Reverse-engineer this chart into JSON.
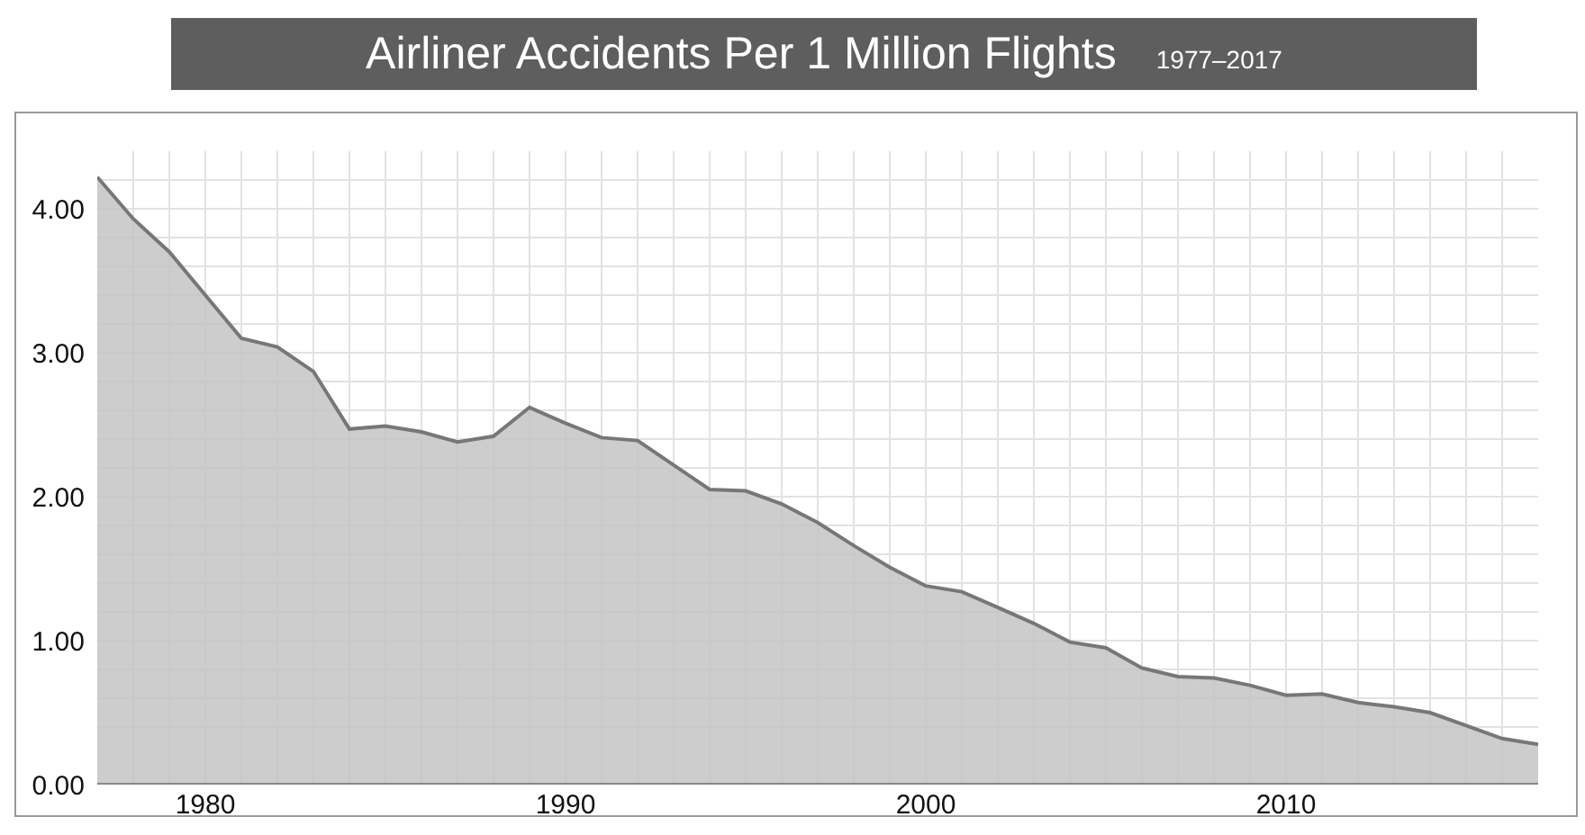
{
  "chart_data": {
    "type": "area",
    "title": "Airliner Accidents Per 1 Million Flights",
    "subtitle": "1977–2017",
    "x": [
      1977,
      1978,
      1979,
      1980,
      1981,
      1982,
      1983,
      1984,
      1985,
      1986,
      1987,
      1988,
      1989,
      1990,
      1991,
      1992,
      1993,
      1994,
      1995,
      1996,
      1997,
      1998,
      1999,
      2000,
      2001,
      2002,
      2003,
      2004,
      2005,
      2006,
      2007,
      2008,
      2009,
      2010,
      2011,
      2012,
      2013,
      2014,
      2015,
      2016,
      2017
    ],
    "series": [
      {
        "color": "#c4c4c4",
        "values": [
          4.22,
          3.93,
          3.7,
          3.4,
          3.1,
          3.04,
          2.87,
          2.47,
          2.49,
          2.45,
          2.38,
          2.42,
          2.62,
          2.51,
          2.41,
          2.39,
          2.22,
          2.05,
          2.04,
          1.95,
          1.82,
          1.66,
          1.51,
          1.38,
          1.34,
          1.23,
          1.12,
          0.99,
          0.95,
          0.81,
          0.75,
          0.74,
          0.69,
          0.62,
          0.63,
          0.57,
          0.54,
          0.5,
          0.41,
          0.32,
          0.28
        ]
      }
    ],
    "xlim": [
      1977,
      2017
    ],
    "xticks": [
      {
        "value": 1978,
        "label": null
      },
      {
        "value": 1979,
        "label": null
      },
      1980,
      {
        "value": 1981,
        "label": null
      },
      {
        "value": 1982,
        "label": null
      },
      {
        "value": 1983,
        "label": null
      },
      {
        "value": 1984,
        "label": null
      },
      {
        "value": 1985,
        "label": null
      },
      {
        "value": 1986,
        "label": null
      },
      {
        "value": 1987,
        "label": null
      },
      {
        "value": 1988,
        "label": null
      },
      {
        "value": 1989,
        "label": null
      },
      1990,
      {
        "value": 1991,
        "label": null
      },
      {
        "value": 1992,
        "label": null
      },
      {
        "value": 1993,
        "label": null
      },
      {
        "value": 1994,
        "label": null
      },
      {
        "value": 1995,
        "label": null
      },
      {
        "value": 1996,
        "label": null
      },
      {
        "value": 1997,
        "label": null
      },
      {
        "value": 1998,
        "label": null
      },
      {
        "value": 1999,
        "label": null
      },
      2000,
      {
        "value": 2001,
        "label": null
      },
      {
        "value": 2002,
        "label": null
      },
      {
        "value": 2003,
        "label": null
      },
      {
        "value": 2004,
        "label": null
      },
      {
        "value": 2005,
        "label": null
      },
      {
        "value": 2006,
        "label": null
      },
      {
        "value": 2007,
        "label": null
      },
      {
        "value": 2008,
        "label": null
      },
      {
        "value": 2009,
        "label": null
      },
      2010,
      {
        "value": 2011,
        "label": null
      },
      {
        "value": 2012,
        "label": null
      },
      {
        "value": 2013,
        "label": null
      },
      {
        "value": 2014,
        "label": null
      },
      {
        "value": 2015,
        "label": null
      },
      {
        "value": 2016,
        "label": null
      }
    ],
    "ylim": [
      0,
      4.4
    ],
    "yticks": [
      {
        "value": 0,
        "label": "0.00"
      },
      {
        "value": 0.4,
        "label": null
      },
      {
        "value": 0.6,
        "label": null
      },
      {
        "value": 0.8,
        "label": null
      },
      {
        "value": 1,
        "label": "1.00"
      },
      {
        "value": 1.2,
        "label": null
      },
      {
        "value": 1.4,
        "label": null
      },
      {
        "value": 1.6,
        "label": null
      },
      {
        "value": 1.8,
        "label": null
      },
      {
        "value": 2,
        "label": "2.00"
      },
      {
        "value": 2.2,
        "label": null
      },
      {
        "value": 2.4,
        "label": null
      },
      {
        "value": 2.6,
        "label": null
      },
      {
        "value": 2.8,
        "label": null
      },
      {
        "value": 3,
        "label": "3.00"
      },
      {
        "value": 3.2,
        "label": null
      },
      {
        "value": 3.4,
        "label": null
      },
      {
        "value": 3.6,
        "label": null
      },
      {
        "value": 3.8,
        "label": null
      },
      {
        "value": 4,
        "label": "4.00"
      },
      {
        "value": 4.2,
        "label": null
      }
    ],
    "grid": true
  }
}
